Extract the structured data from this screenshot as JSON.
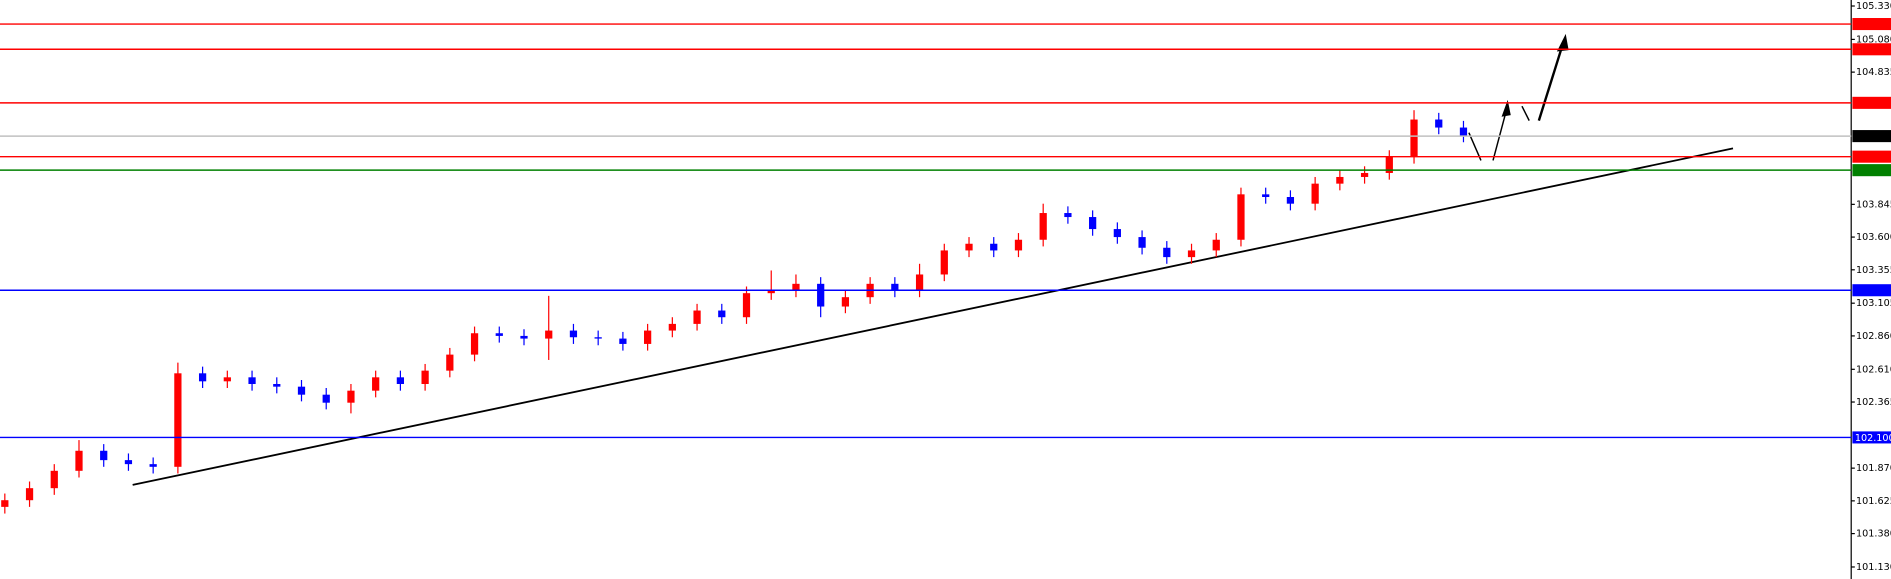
{
  "chart_data": {
    "type": "candlestick",
    "ylim": [
      101.04,
      105.375
    ],
    "yticks": [
      {
        "value": 105.33,
        "label": "105.330"
      },
      {
        "value": 105.08,
        "label": "105.080"
      },
      104.835,
      103.845,
      {
        "value": 103.6,
        "label": "103.600"
      },
      103.355,
      103.105,
      {
        "value": 102.86,
        "label": "102.860"
      },
      {
        "value": 102.61,
        "label": "102.610"
      },
      102.365,
      {
        "value": 101.87,
        "label": "101.870"
      },
      101.625,
      {
        "value": 101.38,
        "label": "101.380"
      },
      {
        "value": 101.13,
        "label": "101.130"
      }
    ],
    "up_color": "#ff0000",
    "down_color": "#0000ff",
    "candles": {
      "open": [
        101.58,
        101.63,
        101.72,
        101.85,
        102.0,
        101.93,
        101.9,
        101.88,
        102.58,
        102.52,
        102.55,
        102.5,
        102.48,
        102.42,
        102.36,
        102.45,
        102.55,
        102.5,
        102.6,
        102.72,
        102.88,
        102.86,
        102.84,
        102.9,
        102.85,
        102.84,
        102.8,
        102.9,
        102.95,
        103.05,
        103.0,
        103.18,
        103.2,
        103.25,
        103.08,
        103.15,
        103.25,
        103.2,
        103.32,
        103.5,
        103.55,
        103.5,
        103.58,
        103.78,
        103.75,
        103.66,
        103.6,
        103.52,
        103.45,
        103.5,
        103.58,
        103.92,
        103.9,
        103.85,
        104.0,
        104.05,
        104.08,
        104.2,
        104.48,
        104.42
      ],
      "high": [
        101.68,
        101.77,
        101.9,
        102.08,
        102.05,
        101.98,
        101.95,
        102.66,
        102.63,
        102.6,
        102.6,
        102.55,
        102.53,
        102.47,
        102.5,
        102.6,
        102.6,
        102.65,
        102.77,
        102.93,
        102.93,
        102.91,
        103.16,
        102.95,
        102.9,
        102.89,
        102.95,
        103.0,
        103.1,
        103.1,
        103.23,
        103.35,
        103.32,
        103.3,
        103.2,
        103.3,
        103.3,
        103.4,
        103.55,
        103.6,
        103.6,
        103.63,
        103.85,
        103.83,
        103.8,
        103.71,
        103.65,
        103.57,
        103.55,
        103.63,
        103.97,
        103.97,
        103.95,
        104.05,
        104.1,
        104.13,
        104.25,
        104.55,
        104.53,
        104.47
      ],
      "low": [
        101.53,
        101.58,
        101.67,
        101.8,
        101.88,
        101.85,
        101.83,
        101.83,
        102.47,
        102.47,
        102.45,
        102.43,
        102.37,
        102.31,
        102.28,
        102.4,
        102.45,
        102.45,
        102.55,
        102.67,
        102.81,
        102.79,
        102.68,
        102.8,
        102.79,
        102.75,
        102.75,
        102.85,
        102.9,
        102.95,
        102.95,
        103.13,
        103.15,
        103.0,
        103.03,
        103.1,
        103.15,
        103.15,
        103.27,
        103.45,
        103.45,
        103.45,
        103.53,
        103.7,
        103.61,
        103.55,
        103.47,
        103.4,
        103.4,
        103.45,
        103.53,
        103.85,
        103.8,
        103.8,
        103.95,
        104.0,
        104.03,
        104.15,
        104.37,
        104.31
      ],
      "close": [
        101.63,
        101.72,
        101.85,
        102.0,
        101.93,
        101.9,
        101.88,
        102.58,
        102.52,
        102.55,
        102.5,
        102.48,
        102.42,
        102.36,
        102.45,
        102.55,
        102.5,
        102.6,
        102.72,
        102.88,
        102.86,
        102.84,
        102.9,
        102.85,
        102.84,
        102.8,
        102.9,
        102.95,
        103.05,
        103.0,
        103.18,
        103.2,
        103.25,
        103.08,
        103.15,
        103.25,
        103.2,
        103.32,
        103.5,
        103.55,
        103.5,
        103.58,
        103.78,
        103.75,
        103.66,
        103.6,
        103.52,
        103.45,
        103.5,
        103.58,
        103.92,
        103.9,
        103.85,
        104.0,
        104.05,
        104.08,
        104.2,
        104.48,
        104.42,
        104.36
      ]
    },
    "levels": [
      {
        "value": 105.195,
        "color": "#ff0000"
      },
      {
        "value": 105.006,
        "color": "#ff0000"
      },
      {
        "value": 104.605,
        "color": "#ff0000"
      },
      {
        "value": 104.202,
        "color": "#ff0000"
      },
      {
        "value": 104.101,
        "color": "#008000"
      },
      {
        "value": 103.202,
        "color": "#0000ff"
      },
      {
        "value": 102.1,
        "label": "102.100",
        "color": "#0000ff"
      }
    ],
    "current_price": {
      "value": 104.356,
      "color": "#c0c0c0"
    }
  }
}
